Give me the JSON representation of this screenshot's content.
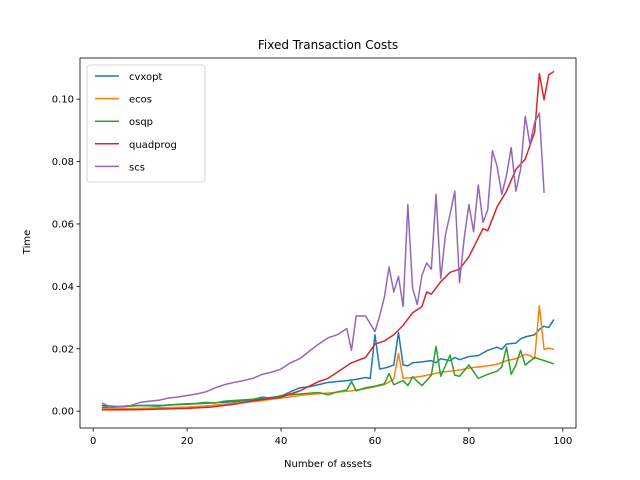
{
  "chart_data": {
    "type": "line",
    "title": "Fixed Transaction Costs",
    "xlabel": "Number of assets",
    "ylabel": "Time",
    "xlim": [
      -2.8,
      102.8
    ],
    "ylim": [
      -0.0054,
      0.1132
    ],
    "xticks": [
      0,
      20,
      40,
      60,
      80,
      100
    ],
    "yticks": [
      0.0,
      0.02,
      0.04,
      0.06,
      0.08,
      0.1
    ],
    "ytick_format": "0.00",
    "grid": false,
    "legend": {
      "position": "top-left"
    },
    "series": [
      {
        "name": "cvxopt",
        "color": "#1f77b4",
        "points": [
          [
            2,
            0.0018
          ],
          [
            5,
            0.0015
          ],
          [
            10,
            0.0018
          ],
          [
            15,
            0.0019
          ],
          [
            20,
            0.0022
          ],
          [
            25,
            0.0026
          ],
          [
            30,
            0.003
          ],
          [
            35,
            0.0038
          ],
          [
            40,
            0.0048
          ],
          [
            42,
            0.0062
          ],
          [
            44,
            0.0075
          ],
          [
            46,
            0.0078
          ],
          [
            48,
            0.0085
          ],
          [
            50,
            0.0092
          ],
          [
            52,
            0.0095
          ],
          [
            54,
            0.0098
          ],
          [
            56,
            0.0102
          ],
          [
            58,
            0.0108
          ],
          [
            59,
            0.0105
          ],
          [
            60,
            0.0245
          ],
          [
            61,
            0.0135
          ],
          [
            62,
            0.0138
          ],
          [
            63,
            0.0142
          ],
          [
            64,
            0.0148
          ],
          [
            65,
            0.0252
          ],
          [
            66,
            0.0148
          ],
          [
            67,
            0.0145
          ],
          [
            68,
            0.0155
          ],
          [
            70,
            0.0158
          ],
          [
            72,
            0.0162
          ],
          [
            73,
            0.0155
          ],
          [
            74,
            0.0168
          ],
          [
            76,
            0.0162
          ],
          [
            77,
            0.0172
          ],
          [
            78,
            0.0165
          ],
          [
            80,
            0.0175
          ],
          [
            82,
            0.0178
          ],
          [
            84,
            0.0195
          ],
          [
            86,
            0.0205
          ],
          [
            87,
            0.0198
          ],
          [
            88,
            0.0215
          ],
          [
            90,
            0.0218
          ],
          [
            91,
            0.0232
          ],
          [
            92,
            0.0238
          ],
          [
            94,
            0.0245
          ],
          [
            95,
            0.0262
          ],
          [
            96,
            0.0272
          ],
          [
            97,
            0.0268
          ],
          [
            98,
            0.0292
          ]
        ]
      },
      {
        "name": "ecos",
        "color": "#ff7f0e",
        "points": [
          [
            2,
            0.0008
          ],
          [
            10,
            0.0009
          ],
          [
            20,
            0.0013
          ],
          [
            25,
            0.0018
          ],
          [
            30,
            0.0025
          ],
          [
            35,
            0.0032
          ],
          [
            40,
            0.0042
          ],
          [
            45,
            0.0052
          ],
          [
            50,
            0.0058
          ],
          [
            55,
            0.0065
          ],
          [
            58,
            0.0072
          ],
          [
            60,
            0.0078
          ],
          [
            62,
            0.0085
          ],
          [
            64,
            0.0102
          ],
          [
            65,
            0.0185
          ],
          [
            66,
            0.0105
          ],
          [
            68,
            0.0108
          ],
          [
            70,
            0.0112
          ],
          [
            72,
            0.0118
          ],
          [
            74,
            0.0125
          ],
          [
            76,
            0.0128
          ],
          [
            78,
            0.0132
          ],
          [
            80,
            0.0138
          ],
          [
            82,
            0.0142
          ],
          [
            84,
            0.0145
          ],
          [
            86,
            0.015
          ],
          [
            88,
            0.0162
          ],
          [
            90,
            0.0168
          ],
          [
            92,
            0.0182
          ],
          [
            93,
            0.0178
          ],
          [
            94,
            0.0168
          ],
          [
            95,
            0.0338
          ],
          [
            96,
            0.0198
          ],
          [
            97,
            0.0202
          ],
          [
            98,
            0.0198
          ]
        ]
      },
      {
        "name": "osqp",
        "color": "#2ca02c",
        "points": [
          [
            2,
            0.0012
          ],
          [
            6,
            0.0014
          ],
          [
            10,
            0.0018
          ],
          [
            14,
            0.0016
          ],
          [
            18,
            0.0022
          ],
          [
            22,
            0.0025
          ],
          [
            24,
            0.0028
          ],
          [
            26,
            0.0026
          ],
          [
            28,
            0.0032
          ],
          [
            30,
            0.0034
          ],
          [
            34,
            0.0038
          ],
          [
            36,
            0.0045
          ],
          [
            38,
            0.0042
          ],
          [
            40,
            0.005
          ],
          [
            44,
            0.0055
          ],
          [
            48,
            0.006
          ],
          [
            50,
            0.0052
          ],
          [
            52,
            0.0062
          ],
          [
            54,
            0.0068
          ],
          [
            55,
            0.0095
          ],
          [
            56,
            0.0065
          ],
          [
            58,
            0.0075
          ],
          [
            60,
            0.008
          ],
          [
            62,
            0.0088
          ],
          [
            63,
            0.012
          ],
          [
            64,
            0.0085
          ],
          [
            66,
            0.0098
          ],
          [
            67,
            0.0082
          ],
          [
            68,
            0.011
          ],
          [
            70,
            0.0082
          ],
          [
            72,
            0.0115
          ],
          [
            73,
            0.0208
          ],
          [
            74,
            0.0112
          ],
          [
            76,
            0.018
          ],
          [
            77,
            0.0115
          ],
          [
            78,
            0.0112
          ],
          [
            80,
            0.0148
          ],
          [
            82,
            0.0105
          ],
          [
            84,
            0.0118
          ],
          [
            86,
            0.0128
          ],
          [
            87,
            0.0142
          ],
          [
            88,
            0.0205
          ],
          [
            89,
            0.0118
          ],
          [
            90,
            0.0148
          ],
          [
            91,
            0.0195
          ],
          [
            92,
            0.0148
          ],
          [
            94,
            0.0172
          ],
          [
            96,
            0.0162
          ],
          [
            98,
            0.0152
          ]
        ]
      },
      {
        "name": "quadprog",
        "color": "#d62728",
        "points": [
          [
            2,
            0.0004
          ],
          [
            10,
            0.0005
          ],
          [
            20,
            0.0009
          ],
          [
            25,
            0.0013
          ],
          [
            30,
            0.0022
          ],
          [
            35,
            0.0035
          ],
          [
            40,
            0.0045
          ],
          [
            44,
            0.0065
          ],
          [
            48,
            0.0095
          ],
          [
            50,
            0.0105
          ],
          [
            52,
            0.0125
          ],
          [
            55,
            0.0155
          ],
          [
            58,
            0.0172
          ],
          [
            60,
            0.0215
          ],
          [
            62,
            0.0225
          ],
          [
            64,
            0.0245
          ],
          [
            66,
            0.0275
          ],
          [
            68,
            0.0315
          ],
          [
            70,
            0.0335
          ],
          [
            71,
            0.0382
          ],
          [
            72,
            0.0375
          ],
          [
            74,
            0.0415
          ],
          [
            76,
            0.0445
          ],
          [
            78,
            0.0455
          ],
          [
            80,
            0.0495
          ],
          [
            82,
            0.0555
          ],
          [
            83,
            0.0585
          ],
          [
            84,
            0.0578
          ],
          [
            86,
            0.0655
          ],
          [
            88,
            0.0705
          ],
          [
            90,
            0.0775
          ],
          [
            92,
            0.0808
          ],
          [
            94,
            0.0895
          ],
          [
            95,
            0.1082
          ],
          [
            96,
            0.0998
          ],
          [
            97,
            0.1078
          ],
          [
            98,
            0.1088
          ]
        ]
      },
      {
        "name": "scs",
        "color": "#9467bd",
        "points": [
          [
            2,
            0.0025
          ],
          [
            4,
            0.0012
          ],
          [
            6,
            0.0015
          ],
          [
            8,
            0.0018
          ],
          [
            10,
            0.0028
          ],
          [
            12,
            0.0032
          ],
          [
            14,
            0.0035
          ],
          [
            16,
            0.0042
          ],
          [
            18,
            0.0045
          ],
          [
            20,
            0.005
          ],
          [
            22,
            0.0055
          ],
          [
            24,
            0.0062
          ],
          [
            26,
            0.0075
          ],
          [
            28,
            0.0085
          ],
          [
            30,
            0.0092
          ],
          [
            32,
            0.0098
          ],
          [
            34,
            0.0105
          ],
          [
            36,
            0.0118
          ],
          [
            38,
            0.0125
          ],
          [
            40,
            0.0135
          ],
          [
            42,
            0.0155
          ],
          [
            44,
            0.0168
          ],
          [
            46,
            0.0192
          ],
          [
            48,
            0.0215
          ],
          [
            50,
            0.0235
          ],
          [
            52,
            0.0245
          ],
          [
            54,
            0.0265
          ],
          [
            55,
            0.0195
          ],
          [
            56,
            0.0305
          ],
          [
            58,
            0.0305
          ],
          [
            60,
            0.0255
          ],
          [
            61,
            0.0305
          ],
          [
            62,
            0.0365
          ],
          [
            63,
            0.0462
          ],
          [
            64,
            0.0382
          ],
          [
            65,
            0.0432
          ],
          [
            66,
            0.0335
          ],
          [
            67,
            0.0662
          ],
          [
            68,
            0.0395
          ],
          [
            69,
            0.0342
          ],
          [
            70,
            0.0435
          ],
          [
            71,
            0.0475
          ],
          [
            72,
            0.0455
          ],
          [
            73,
            0.0695
          ],
          [
            74,
            0.0425
          ],
          [
            75,
            0.0565
          ],
          [
            76,
            0.0632
          ],
          [
            77,
            0.0705
          ],
          [
            78,
            0.0412
          ],
          [
            79,
            0.0555
          ],
          [
            80,
            0.0662
          ],
          [
            81,
            0.0575
          ],
          [
            82,
            0.0725
          ],
          [
            83,
            0.0605
          ],
          [
            84,
            0.0645
          ],
          [
            85,
            0.0835
          ],
          [
            86,
            0.0785
          ],
          [
            87,
            0.0695
          ],
          [
            88,
            0.0755
          ],
          [
            89,
            0.0845
          ],
          [
            90,
            0.0705
          ],
          [
            91,
            0.0775
          ],
          [
            92,
            0.0945
          ],
          [
            93,
            0.0855
          ],
          [
            94,
            0.0925
          ],
          [
            95,
            0.0955
          ],
          [
            96,
            0.0702
          ]
        ]
      }
    ]
  }
}
